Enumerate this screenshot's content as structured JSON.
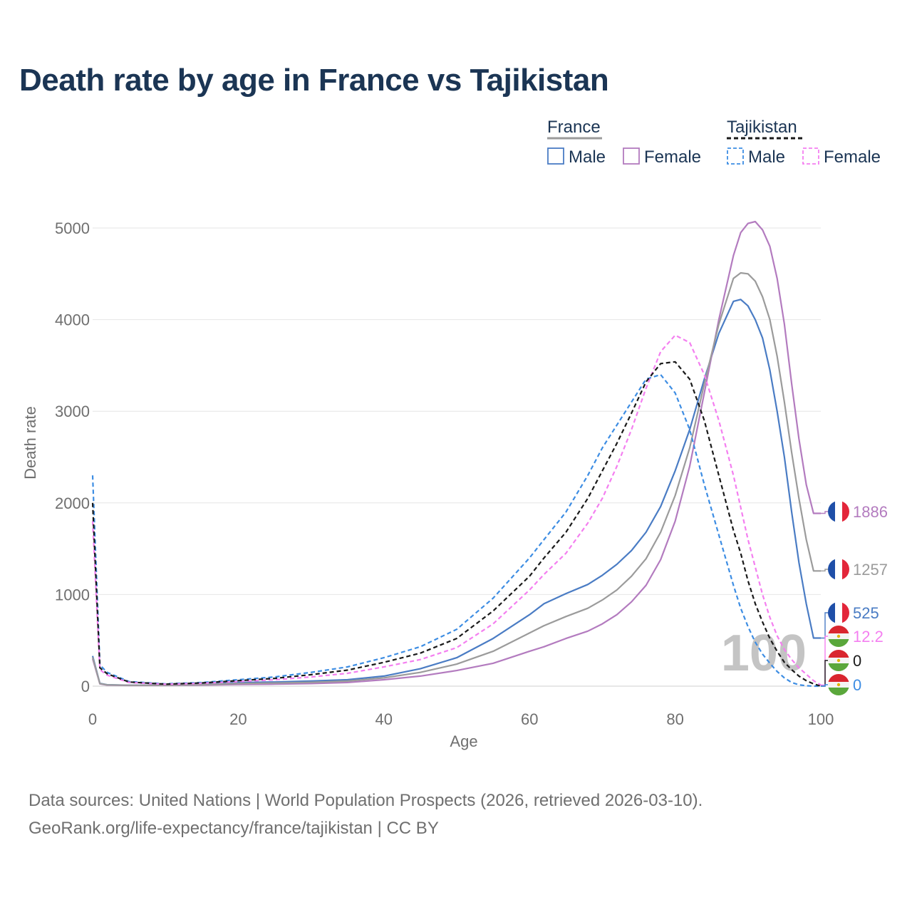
{
  "chart_data": {
    "type": "line",
    "title": "Death rate by age in France vs Tajikistan",
    "xlabel": "Age",
    "ylabel": "Death rate",
    "xlim": [
      0,
      100
    ],
    "ylim": [
      0,
      5000
    ],
    "x_ticks": [
      0,
      20,
      40,
      60,
      80,
      100
    ],
    "y_ticks": [
      0,
      1000,
      2000,
      3000,
      4000,
      5000
    ],
    "grid": true,
    "watermark_year": "100",
    "legend": {
      "position": "top-right",
      "groups": [
        {
          "name": "France",
          "entries": [
            "Male",
            "Female"
          ]
        },
        {
          "name": "Tajikistan",
          "entries": [
            "Male",
            "Female"
          ]
        }
      ]
    },
    "x": [
      0,
      1,
      2,
      5,
      10,
      15,
      20,
      25,
      30,
      35,
      40,
      45,
      50,
      55,
      60,
      62,
      65,
      68,
      70,
      72,
      74,
      76,
      78,
      80,
      82,
      84,
      86,
      88,
      89,
      90,
      91,
      92,
      93,
      94,
      95,
      96,
      97,
      98,
      99,
      100
    ],
    "series": [
      {
        "name": "France Male",
        "country": "France",
        "sex": "Male",
        "color": "#4a7cc4",
        "dash": false,
        "end_label": "525",
        "end_value": 525,
        "values": [
          330,
          30,
          15,
          10,
          10,
          20,
          40,
          45,
          55,
          70,
          110,
          190,
          310,
          520,
          780,
          900,
          1010,
          1110,
          1210,
          1330,
          1480,
          1680,
          1960,
          2350,
          2800,
          3350,
          3850,
          4200,
          4220,
          4150,
          4000,
          3800,
          3450,
          3000,
          2500,
          1900,
          1350,
          900,
          525,
          525
        ]
      },
      {
        "name": "France Female",
        "country": "France",
        "sex": "Female",
        "color": "#b37bbf",
        "dash": false,
        "end_label": "1886",
        "end_value": 1886,
        "values": [
          300,
          25,
          12,
          8,
          8,
          12,
          18,
          22,
          28,
          40,
          70,
          110,
          170,
          250,
          380,
          430,
          520,
          600,
          680,
          780,
          920,
          1100,
          1380,
          1800,
          2400,
          3200,
          4000,
          4700,
          4950,
          5050,
          5070,
          4980,
          4800,
          4450,
          3950,
          3300,
          2700,
          2200,
          1886,
          1886
        ]
      },
      {
        "name": "France Total",
        "country": "France",
        "sex": "Total",
        "color": "#9b9b9b",
        "dash": false,
        "end_label": "1257",
        "end_value": 1257,
        "values": [
          315,
          28,
          14,
          9,
          9,
          16,
          28,
          34,
          42,
          55,
          90,
          150,
          240,
          380,
          580,
          660,
          760,
          850,
          940,
          1050,
          1200,
          1390,
          1680,
          2080,
          2600,
          3300,
          3950,
          4450,
          4510,
          4500,
          4420,
          4250,
          4000,
          3600,
          3100,
          2550,
          2050,
          1600,
          1257,
          1257
        ]
      },
      {
        "name": "Tajikistan Male",
        "country": "Tajikistan",
        "sex": "Male",
        "color": "#3d8de3",
        "dash": true,
        "end_label": "0",
        "end_value": 0,
        "values": [
          2300,
          230,
          150,
          50,
          25,
          40,
          70,
          100,
          150,
          210,
          310,
          430,
          620,
          960,
          1400,
          1600,
          1900,
          2300,
          2600,
          2850,
          3100,
          3350,
          3400,
          3200,
          2800,
          2200,
          1650,
          1100,
          850,
          650,
          480,
          350,
          250,
          160,
          90,
          40,
          15,
          5,
          0,
          0
        ]
      },
      {
        "name": "Tajikistan Female",
        "country": "Tajikistan",
        "sex": "Female",
        "color": "#f47ff0",
        "dash": true,
        "end_label": "12.2",
        "end_value": 12.2,
        "values": [
          1800,
          180,
          120,
          40,
          20,
          30,
          50,
          70,
          100,
          140,
          210,
          290,
          420,
          680,
          1050,
          1220,
          1450,
          1780,
          2050,
          2400,
          2800,
          3250,
          3650,
          3830,
          3750,
          3400,
          2900,
          2300,
          1950,
          1600,
          1300,
          1000,
          750,
          550,
          400,
          290,
          200,
          130,
          60,
          12.2
        ]
      },
      {
        "name": "Tajikistan Total",
        "country": "Tajikistan",
        "sex": "Total",
        "color": "#1a1a1a",
        "dash": true,
        "end_label": "0",
        "end_value": 0,
        "values": [
          2000,
          200,
          135,
          45,
          22,
          35,
          60,
          85,
          125,
          175,
          260,
          360,
          520,
          820,
          1200,
          1400,
          1680,
          2050,
          2350,
          2650,
          2980,
          3320,
          3520,
          3540,
          3350,
          2900,
          2300,
          1700,
          1450,
          1150,
          900,
          700,
          520,
          380,
          260,
          180,
          110,
          60,
          25,
          0
        ]
      }
    ]
  },
  "footer": {
    "line1": "Data sources: United Nations | World Population Prospects (2026, retrieved 2026-03-10).",
    "line2": "GeoRank.org/life-expectancy/france/tajikistan | CC BY"
  }
}
